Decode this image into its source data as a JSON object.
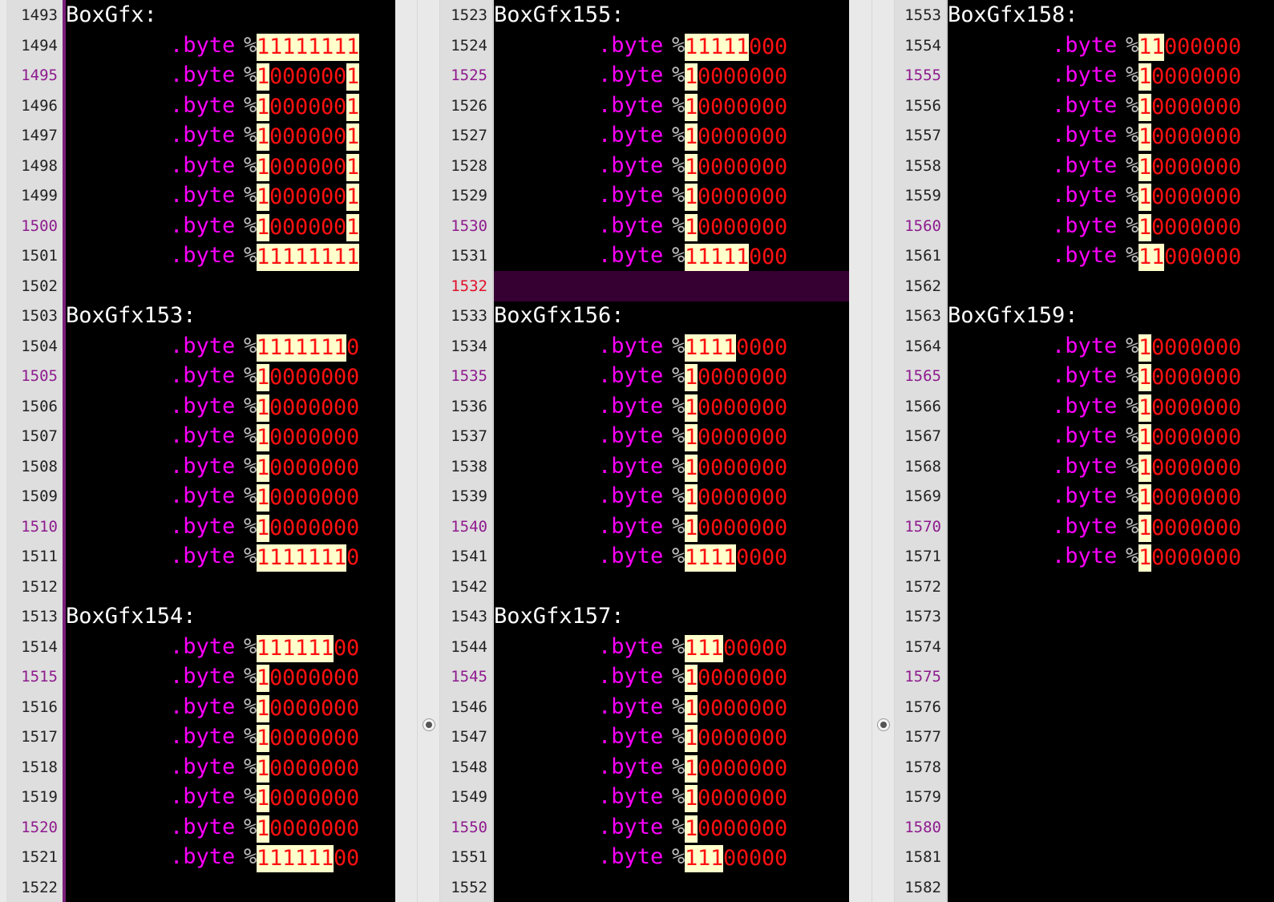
{
  "editor": {
    "panes": [
      {
        "start_line": 1493,
        "current_line": null,
        "lines": [
          {
            "label": "BoxGfx:"
          },
          {
            "kw": ".byte",
            "bits": "11111111"
          },
          {
            "kw": ".byte",
            "bits": "10000001"
          },
          {
            "kw": ".byte",
            "bits": "10000001"
          },
          {
            "kw": ".byte",
            "bits": "10000001"
          },
          {
            "kw": ".byte",
            "bits": "10000001"
          },
          {
            "kw": ".byte",
            "bits": "10000001"
          },
          {
            "kw": ".byte",
            "bits": "10000001"
          },
          {
            "kw": ".byte",
            "bits": "11111111"
          },
          {},
          {
            "label": "BoxGfx153:"
          },
          {
            "kw": ".byte",
            "bits": "11111110"
          },
          {
            "kw": ".byte",
            "bits": "10000000"
          },
          {
            "kw": ".byte",
            "bits": "10000000"
          },
          {
            "kw": ".byte",
            "bits": "10000000"
          },
          {
            "kw": ".byte",
            "bits": "10000000"
          },
          {
            "kw": ".byte",
            "bits": "10000000"
          },
          {
            "kw": ".byte",
            "bits": "10000000"
          },
          {
            "kw": ".byte",
            "bits": "11111110"
          },
          {},
          {
            "label": "BoxGfx154:"
          },
          {
            "kw": ".byte",
            "bits": "11111100"
          },
          {
            "kw": ".byte",
            "bits": "10000000"
          },
          {
            "kw": ".byte",
            "bits": "10000000"
          },
          {
            "kw": ".byte",
            "bits": "10000000"
          },
          {
            "kw": ".byte",
            "bits": "10000000"
          },
          {
            "kw": ".byte",
            "bits": "10000000"
          },
          {
            "kw": ".byte",
            "bits": "10000000"
          },
          {
            "kw": ".byte",
            "bits": "11111100"
          },
          {}
        ]
      },
      {
        "start_line": 1523,
        "current_line": 1532,
        "lines": [
          {
            "label": "BoxGfx155:"
          },
          {
            "kw": ".byte",
            "bits": "11111000"
          },
          {
            "kw": ".byte",
            "bits": "10000000"
          },
          {
            "kw": ".byte",
            "bits": "10000000"
          },
          {
            "kw": ".byte",
            "bits": "10000000"
          },
          {
            "kw": ".byte",
            "bits": "10000000"
          },
          {
            "kw": ".byte",
            "bits": "10000000"
          },
          {
            "kw": ".byte",
            "bits": "10000000"
          },
          {
            "kw": ".byte",
            "bits": "11111000"
          },
          {},
          {
            "label": "BoxGfx156:"
          },
          {
            "kw": ".byte",
            "bits": "11110000"
          },
          {
            "kw": ".byte",
            "bits": "10000000"
          },
          {
            "kw": ".byte",
            "bits": "10000000"
          },
          {
            "kw": ".byte",
            "bits": "10000000"
          },
          {
            "kw": ".byte",
            "bits": "10000000"
          },
          {
            "kw": ".byte",
            "bits": "10000000"
          },
          {
            "kw": ".byte",
            "bits": "10000000"
          },
          {
            "kw": ".byte",
            "bits": "11110000"
          },
          {},
          {
            "label": "BoxGfx157:"
          },
          {
            "kw": ".byte",
            "bits": "11100000"
          },
          {
            "kw": ".byte",
            "bits": "10000000"
          },
          {
            "kw": ".byte",
            "bits": "10000000"
          },
          {
            "kw": ".byte",
            "bits": "10000000"
          },
          {
            "kw": ".byte",
            "bits": "10000000"
          },
          {
            "kw": ".byte",
            "bits": "10000000"
          },
          {
            "kw": ".byte",
            "bits": "10000000"
          },
          {
            "kw": ".byte",
            "bits": "11100000"
          },
          {}
        ]
      },
      {
        "start_line": 1553,
        "current_line": null,
        "lines": [
          {
            "label": "BoxGfx158:"
          },
          {
            "kw": ".byte",
            "bits": "11000000"
          },
          {
            "kw": ".byte",
            "bits": "10000000"
          },
          {
            "kw": ".byte",
            "bits": "10000000"
          },
          {
            "kw": ".byte",
            "bits": "10000000"
          },
          {
            "kw": ".byte",
            "bits": "10000000"
          },
          {
            "kw": ".byte",
            "bits": "10000000"
          },
          {
            "kw": ".byte",
            "bits": "10000000"
          },
          {
            "kw": ".byte",
            "bits": "11000000"
          },
          {},
          {
            "label": "BoxGfx159:"
          },
          {
            "kw": ".byte",
            "bits": "10000000"
          },
          {
            "kw": ".byte",
            "bits": "10000000"
          },
          {
            "kw": ".byte",
            "bits": "10000000"
          },
          {
            "kw": ".byte",
            "bits": "10000000"
          },
          {
            "kw": ".byte",
            "bits": "10000000"
          },
          {
            "kw": ".byte",
            "bits": "10000000"
          },
          {
            "kw": ".byte",
            "bits": "10000000"
          },
          {
            "kw": ".byte",
            "bits": "10000000"
          },
          {},
          {},
          {},
          {},
          {},
          {},
          {},
          {},
          {},
          {},
          {}
        ]
      }
    ],
    "percent_sign": "%",
    "colors": {
      "background": "#000000",
      "keyword": "#ff00ff",
      "label": "#ffffff",
      "bit_digit": "#ff1010",
      "bit_set_highlight": "#ffffcc",
      "current_line_highlight": "#360033",
      "line_number": "#222222",
      "line_number_every_fifth": "#8e1a8e",
      "line_number_current": "#e0102a"
    }
  }
}
